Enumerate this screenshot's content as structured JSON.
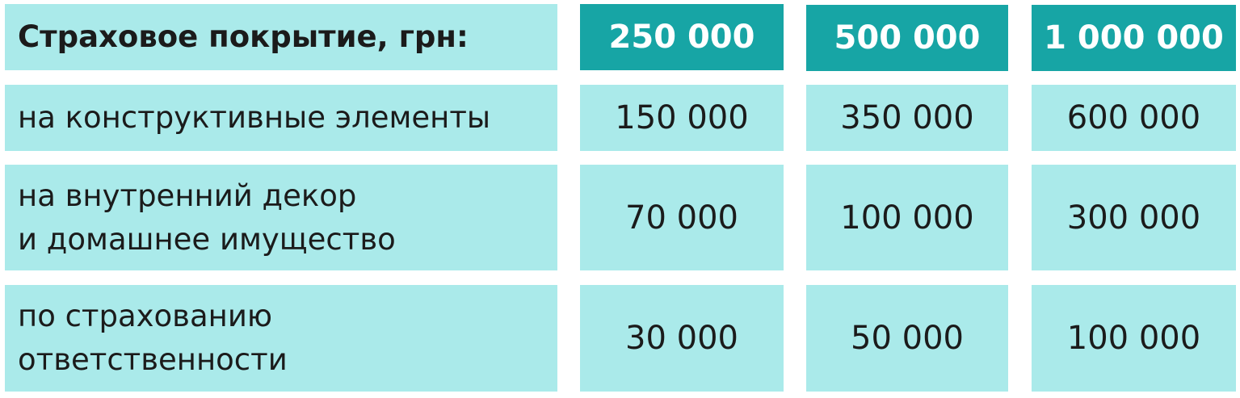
{
  "colors": {
    "header_accent": "#17a5a5",
    "cell_bg": "#aaeaea",
    "header_text": "#ffffff",
    "text": "#1b1b1b"
  },
  "header": {
    "label": "Страховое покрытие, грн:",
    "plans": [
      "250 000",
      "500 000",
      "1 000 000"
    ]
  },
  "rows": [
    {
      "label_lines": [
        "на конструктивные элементы"
      ],
      "values": [
        "150 000",
        "350 000",
        "600 000"
      ]
    },
    {
      "label_lines": [
        "на внутренний декор",
        "и домашнее имущество"
      ],
      "values": [
        "70 000",
        "100 000",
        "300 000"
      ]
    },
    {
      "label_lines": [
        "по страхованию",
        "ответственности"
      ],
      "values": [
        "30 000",
        "50 000",
        "100 000"
      ]
    }
  ]
}
